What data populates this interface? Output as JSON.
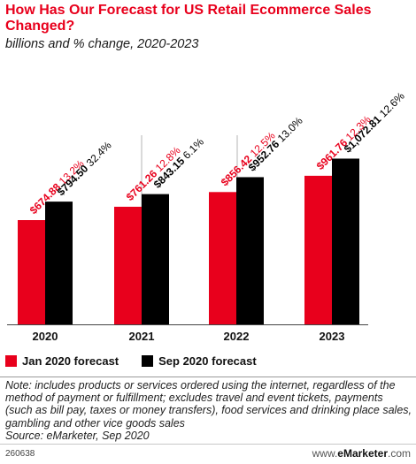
{
  "title": "How Has Our Forecast for US Retail Ecommerce Sales Changed?",
  "subtitle": "billions and % change, 2020-2023",
  "colors": {
    "jan": "#e8001c",
    "sep": "#000000",
    "title": "#e8001c"
  },
  "legend": {
    "jan_label": "Jan 2020 forecast",
    "sep_label": "Sep 2020 forecast"
  },
  "note": "Note: includes products or services ordered using the internet, regardless of the method of payment or fulfillment; excludes travel and event tickets, payments (such as bill pay, taxes or money transfers), food services and drinking place sales, gambling and other vice goods sales",
  "source": "Source: eMarketer, Sep 2020",
  "chart_id": "260638",
  "brand": {
    "prefix": "www.",
    "name": "eMarketer",
    "suffix": ".com"
  },
  "chart_data": {
    "type": "bar",
    "categories": [
      "2020",
      "2021",
      "2022",
      "2023"
    ],
    "series": [
      {
        "name": "Jan 2020 forecast",
        "color": "#e8001c",
        "values": [
          674.88,
          761.26,
          856.42,
          961.76
        ],
        "value_labels": [
          "$674.88",
          "$761.26",
          "$856.42",
          "$961.76"
        ],
        "pct_labels": [
          "13.2%",
          "12.8%",
          "12.5%",
          "12.3%"
        ]
      },
      {
        "name": "Sep 2020 forecast",
        "color": "#000000",
        "values": [
          794.5,
          843.15,
          952.76,
          1072.81
        ],
        "value_labels": [
          "$794.50",
          "$843.15",
          "$952.76",
          "$1,072.81"
        ],
        "pct_labels": [
          "32.4%",
          "6.1%",
          "13.0%",
          "12.6%"
        ]
      }
    ],
    "legend_position": "bottom-left",
    "grid": false
  }
}
